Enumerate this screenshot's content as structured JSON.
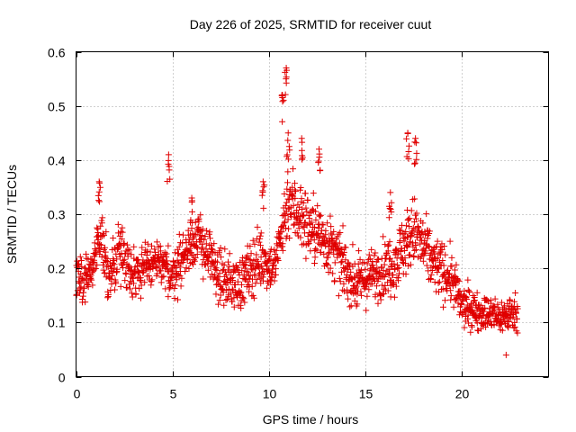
{
  "chart_data": {
    "type": "scatter",
    "title": "Day 226 of 2025, SRMTID for receiver cuut",
    "xlabel": "GPS time / hours",
    "ylabel": "SRMTID / TECUs",
    "xlim": [
      0,
      24.5
    ],
    "ylim": [
      0,
      0.6
    ],
    "xticks": [
      0,
      5,
      10,
      15,
      20
    ],
    "xtick_labels": [
      "0",
      "5",
      "10",
      "15",
      "20"
    ],
    "yticks": [
      0,
      0.1,
      0.2,
      0.3,
      0.4,
      0.5,
      0.6
    ],
    "ytick_labels": [
      "0",
      "0.1",
      "0.2",
      "0.3",
      "0.4",
      "0.5",
      "0.6"
    ],
    "grid": true,
    "marker": "+",
    "color": "#e00000",
    "series": [
      {
        "name": "SRMTID",
        "profile": [
          {
            "x": 0.0,
            "y": 0.19,
            "spread": 0.05
          },
          {
            "x": 0.5,
            "y": 0.17,
            "spread": 0.06
          },
          {
            "x": 1.0,
            "y": 0.22,
            "spread": 0.06
          },
          {
            "x": 1.3,
            "y": 0.28,
            "spread": 0.07
          },
          {
            "x": 1.7,
            "y": 0.17,
            "spread": 0.06
          },
          {
            "x": 2.2,
            "y": 0.24,
            "spread": 0.07
          },
          {
            "x": 3.0,
            "y": 0.19,
            "spread": 0.06
          },
          {
            "x": 4.0,
            "y": 0.21,
            "spread": 0.06
          },
          {
            "x": 5.0,
            "y": 0.19,
            "spread": 0.06
          },
          {
            "x": 5.5,
            "y": 0.22,
            "spread": 0.06
          },
          {
            "x": 6.3,
            "y": 0.26,
            "spread": 0.06
          },
          {
            "x": 7.5,
            "y": 0.18,
            "spread": 0.06
          },
          {
            "x": 8.5,
            "y": 0.17,
            "spread": 0.06
          },
          {
            "x": 9.5,
            "y": 0.22,
            "spread": 0.07
          },
          {
            "x": 10.3,
            "y": 0.2,
            "spread": 0.05
          },
          {
            "x": 11.0,
            "y": 0.33,
            "spread": 0.09
          },
          {
            "x": 12.0,
            "y": 0.28,
            "spread": 0.08
          },
          {
            "x": 13.0,
            "y": 0.25,
            "spread": 0.07
          },
          {
            "x": 14.5,
            "y": 0.17,
            "spread": 0.06
          },
          {
            "x": 15.5,
            "y": 0.19,
            "spread": 0.06
          },
          {
            "x": 16.5,
            "y": 0.21,
            "spread": 0.07
          },
          {
            "x": 17.5,
            "y": 0.27,
            "spread": 0.08
          },
          {
            "x": 18.5,
            "y": 0.21,
            "spread": 0.07
          },
          {
            "x": 19.5,
            "y": 0.18,
            "spread": 0.06
          },
          {
            "x": 20.0,
            "y": 0.13,
            "spread": 0.05
          },
          {
            "x": 21.0,
            "y": 0.12,
            "spread": 0.04
          },
          {
            "x": 22.0,
            "y": 0.11,
            "spread": 0.04
          },
          {
            "x": 22.8,
            "y": 0.12,
            "spread": 0.04
          }
        ],
        "x_range": [
          0.0,
          22.9
        ],
        "point_count": 1700,
        "peaks": [
          {
            "x": 10.9,
            "y": 0.57
          },
          {
            "x": 10.7,
            "y": 0.52
          },
          {
            "x": 11.0,
            "y": 0.45
          },
          {
            "x": 17.2,
            "y": 0.45
          },
          {
            "x": 17.6,
            "y": 0.44
          },
          {
            "x": 11.7,
            "y": 0.44
          },
          {
            "x": 12.6,
            "y": 0.42
          },
          {
            "x": 4.8,
            "y": 0.41
          },
          {
            "x": 1.2,
            "y": 0.36
          },
          {
            "x": 9.7,
            "y": 0.36
          },
          {
            "x": 6.0,
            "y": 0.33
          },
          {
            "x": 16.3,
            "y": 0.34
          }
        ],
        "minimum": {
          "x": 22.3,
          "y": 0.04
        }
      }
    ]
  }
}
